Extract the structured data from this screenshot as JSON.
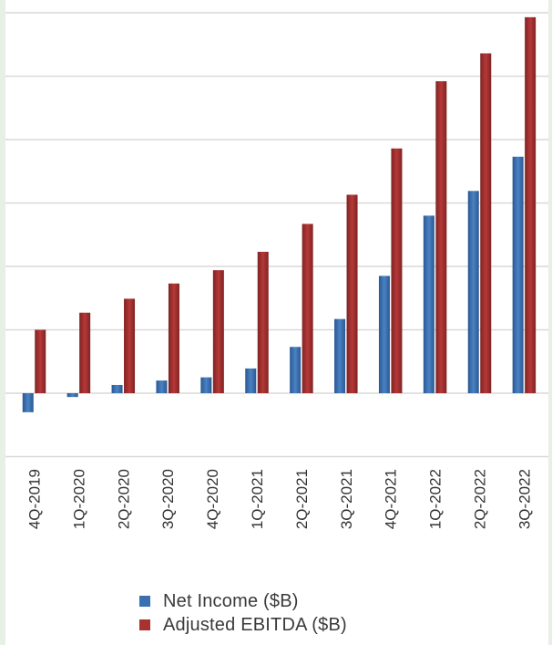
{
  "chart_data": {
    "type": "bar",
    "title": "",
    "xlabel": "",
    "ylabel": "",
    "categories": [
      "4Q-2019",
      "1Q-2020",
      "2Q-2020",
      "3Q-2020",
      "4Q-2020",
      "1Q-2021",
      "2Q-2021",
      "3Q-2021",
      "4Q-2021",
      "1Q-2022",
      "2Q-2022",
      "3Q-2022"
    ],
    "series": [
      {
        "name": "Net Income ($B)",
        "color": "#3a6fb0",
        "values": [
          -0.3,
          -0.06,
          0.13,
          0.2,
          0.25,
          0.39,
          0.73,
          1.17,
          1.85,
          2.8,
          3.19,
          3.73
        ]
      },
      {
        "name": "Adjusted EBITDA ($B)",
        "color": "#a83232",
        "values": [
          1.0,
          1.27,
          1.49,
          1.73,
          1.94,
          2.23,
          2.67,
          3.13,
          3.86,
          4.92,
          5.36,
          5.93
        ]
      }
    ],
    "ylim": [
      -1,
      6.2
    ],
    "grid": true,
    "legend_position": "bottom-center"
  }
}
